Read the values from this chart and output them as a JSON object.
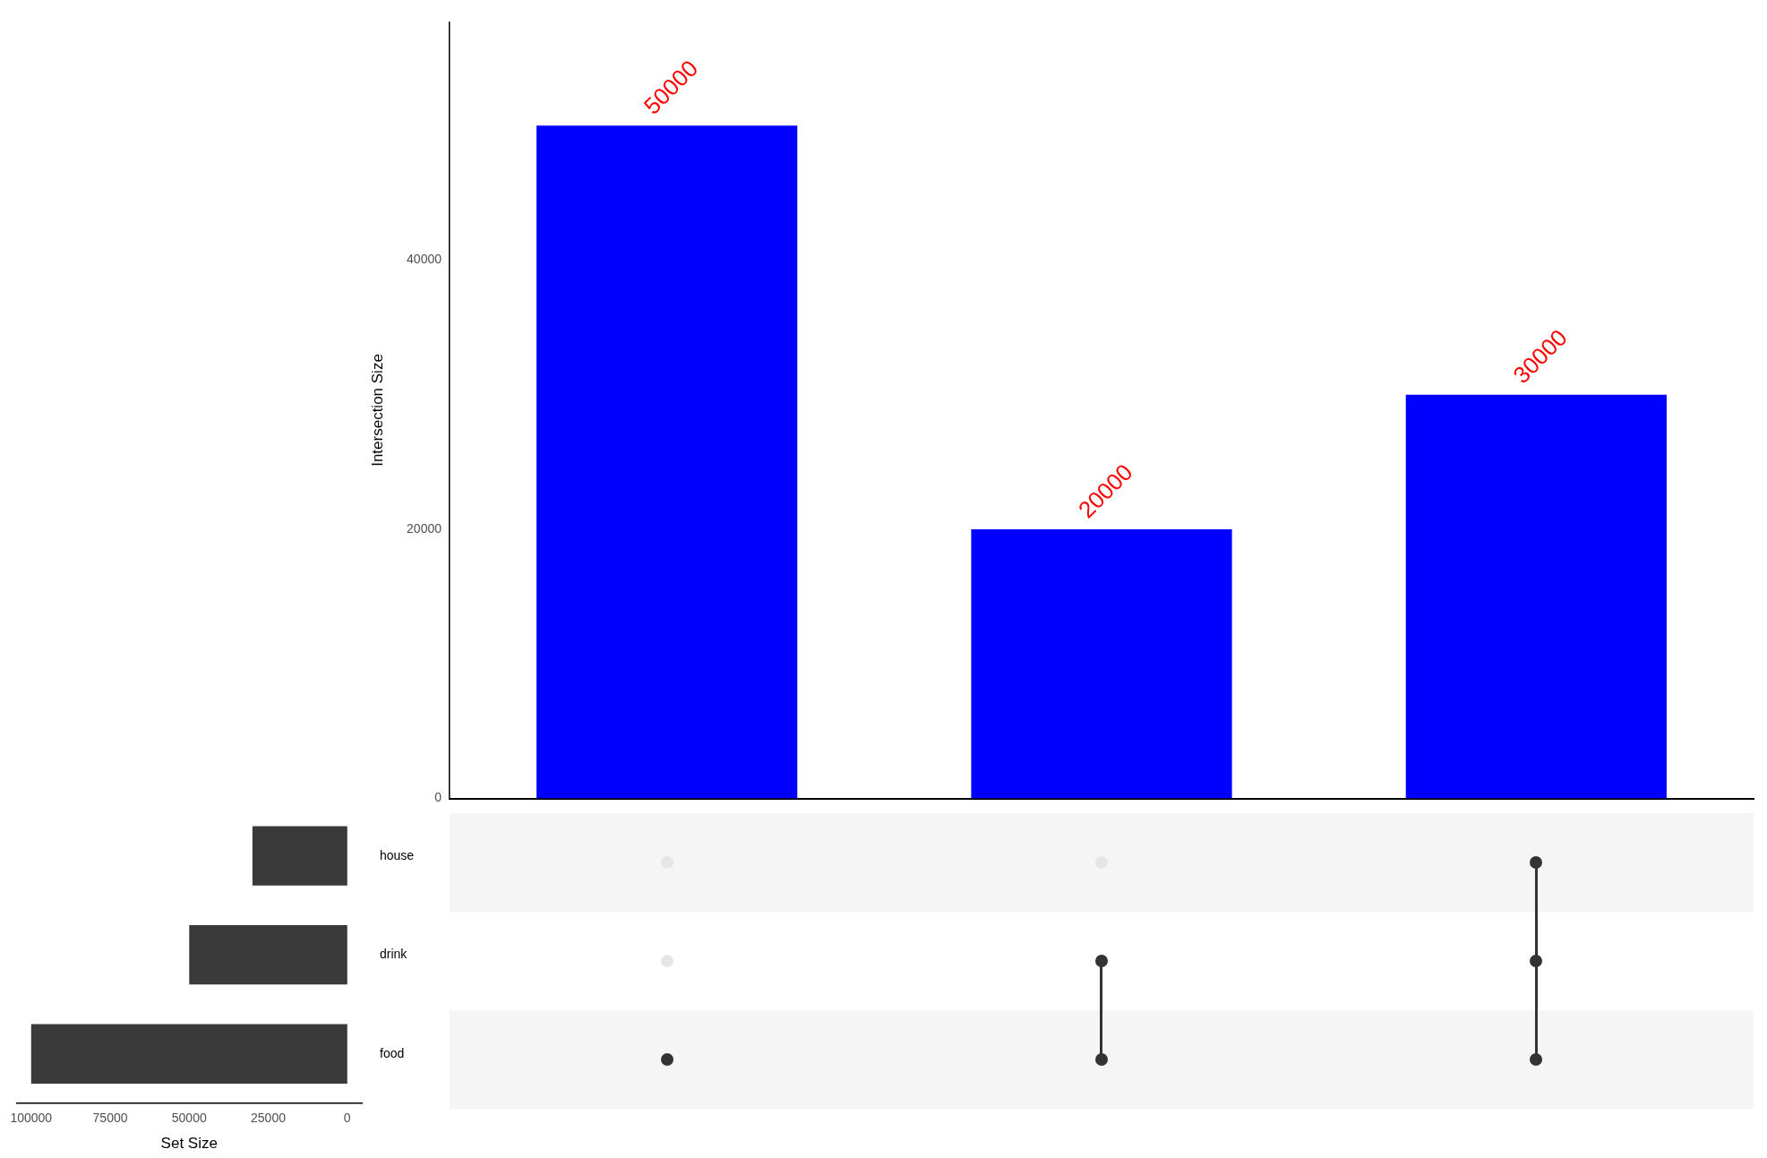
{
  "chart_data": [
    {
      "type": "bar",
      "ylabel": "Intersection Size",
      "categories": [
        null,
        null,
        null
      ],
      "values": [
        50000,
        20000,
        30000
      ],
      "color": "#0000ff",
      "ylim": [
        0,
        57700
      ],
      "yticks": [
        0,
        20000,
        40000
      ],
      "grid": false,
      "data_labels": true,
      "tick_labels": "y",
      "legend": false
    },
    {
      "type": "bar",
      "orientation": "horizontal",
      "xlabel": "Set Size",
      "categories": [
        "house",
        "drink",
        "food"
      ],
      "values": [
        30000,
        50000,
        100000
      ],
      "color": "#3a3a3a",
      "xlim": [
        104600,
        -4600
      ],
      "xticks": [
        100000,
        75000,
        50000,
        25000,
        0
      ],
      "grid": false,
      "legend": false
    }
  ]
}
